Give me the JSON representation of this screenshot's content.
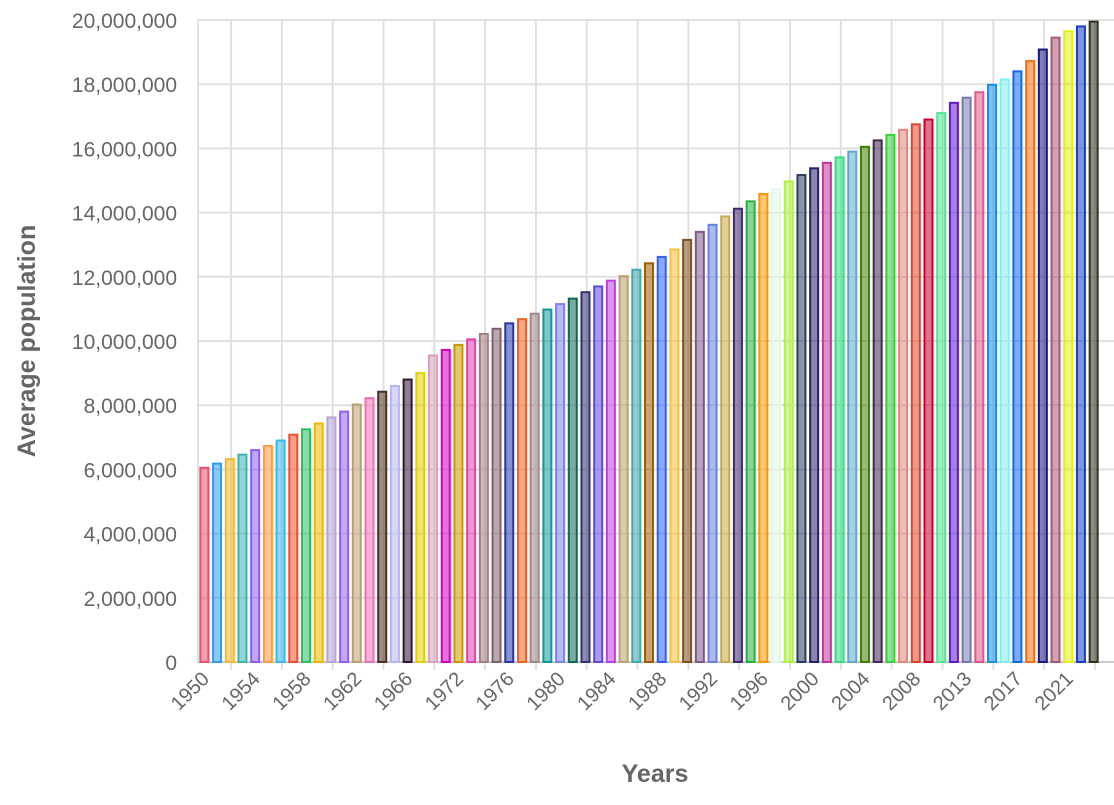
{
  "chart_data": {
    "type": "bar",
    "title": "",
    "xlabel": "Years",
    "ylabel": "Average population",
    "ylim": [
      0,
      20000000
    ],
    "yticks": [
      "0",
      "2,000,000",
      "4,000,000",
      "6,000,000",
      "8,000,000",
      "10,000,000",
      "12,000,000",
      "14,000,000",
      "16,000,000",
      "18,000,000",
      "20,000,000"
    ],
    "grid": true,
    "legend": "none",
    "categories": [
      "1950",
      "1951",
      "1952",
      "1953",
      "1954",
      "1955",
      "1956",
      "1957",
      "1958",
      "1959",
      "1960",
      "1961",
      "1962",
      "1963",
      "1964",
      "1965",
      "1966",
      "1967",
      "1970",
      "1971",
      "1972",
      "1973",
      "1974",
      "1975",
      "1976",
      "1977",
      "1978",
      "1979",
      "1980",
      "1981",
      "1982",
      "1983",
      "1984",
      "1985",
      "1986",
      "1987",
      "1988",
      "1989",
      "1990",
      "1991",
      "1992",
      "1993",
      "1994",
      "1995",
      "1996",
      "1997",
      "1998",
      "1999",
      "2000",
      "2001",
      "2002",
      "2003",
      "2004",
      "2005",
      "2006",
      "2007",
      "2008",
      "2009",
      "2010",
      "2012",
      "2013",
      "2014",
      "2015",
      "2016",
      "2017",
      "2018",
      "2019",
      "2020",
      "2021",
      "2022",
      "2023"
    ],
    "xtick_labels_shown": [
      "1950",
      "1954",
      "1958",
      "1962",
      "1966",
      "1972",
      "1976",
      "1980",
      "1984",
      "1988",
      "1992",
      "1996",
      "2000",
      "2004",
      "2008",
      "2013",
      "2017",
      "2021"
    ],
    "values": [
      6050000,
      6180000,
      6320000,
      6460000,
      6600000,
      6730000,
      6900000,
      7080000,
      7250000,
      7430000,
      7620000,
      7800000,
      8020000,
      8220000,
      8420000,
      8600000,
      8800000,
      9000000,
      9550000,
      9720000,
      9880000,
      10050000,
      10220000,
      10380000,
      10550000,
      10680000,
      10850000,
      10980000,
      11150000,
      11320000,
      11520000,
      11700000,
      11880000,
      12020000,
      12220000,
      12420000,
      12620000,
      12850000,
      13150000,
      13400000,
      13620000,
      13880000,
      14120000,
      14350000,
      14580000,
      14720000,
      14970000,
      15170000,
      15380000,
      15550000,
      15720000,
      15900000,
      16050000,
      16250000,
      16420000,
      16580000,
      16750000,
      16900000,
      17100000,
      17420000,
      17580000,
      17750000,
      17980000,
      18150000,
      18400000,
      18720000,
      19080000,
      19450000,
      19650000,
      19800000,
      19950000
    ],
    "colors": [
      "#e8506e",
      "#2e9be8",
      "#f5b92e",
      "#3cb5b0",
      "#8c5cf0",
      "#ff9b3c",
      "#38b8f0",
      "#f04e2e",
      "#2cc060",
      "#f0b800",
      "#b8a4d8",
      "#9060f0",
      "#b8a070",
      "#f070b8",
      "#4a3020",
      "#b8b4f8",
      "#301830",
      "#e0d000",
      "#d8a0bc",
      "#d000c0",
      "#c89a00",
      "#e040b0",
      "#a08080",
      "#806070",
      "#2838a8",
      "#f06020",
      "#a08888",
      "#109898",
      "#8080f0",
      "#106850",
      "#303070",
      "#6048d8",
      "#c040e0",
      "#b8a070",
      "#40a8b0",
      "#a05c00",
      "#3060f8",
      "#f8c040",
      "#805020",
      "#805888",
      "#6880e0",
      "#c8a850",
      "#402870",
      "#28b040",
      "#f89800",
      "#e0f8e8",
      "#b0f040",
      "#283c60",
      "#282068",
      "#c03898",
      "#30e080",
      "#60a8d0",
      "#408000",
      "#402850",
      "#38d038",
      "#e08878",
      "#d84830",
      "#c80030",
      "#50e890",
      "#6018c8",
      "#7878b0",
      "#e05888",
      "#1890e8",
      "#80f0f0",
      "#1068f0",
      "#f87010",
      "#181880",
      "#a85870",
      "#e0f010",
      "#1840c0",
      "#303020"
    ]
  }
}
